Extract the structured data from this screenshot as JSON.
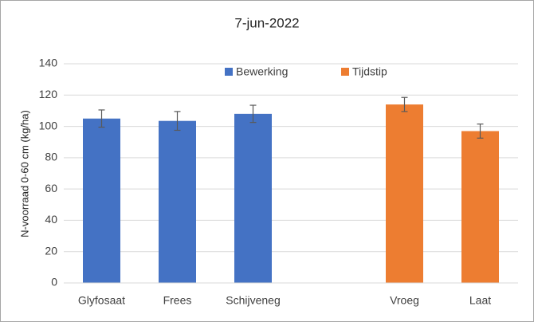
{
  "chart_data": {
    "type": "bar",
    "title": "7-jun-2022",
    "y_label": "N-voorraad 0-60 cm (kg/ha)",
    "categories": [
      "Glyfosaat",
      "Frees",
      "Schijveneg",
      null,
      "Vroeg",
      "Laat"
    ],
    "series": [
      {
        "name": "Bewerking",
        "color": "#4472c4",
        "values": [
          105,
          103.5,
          108,
          null,
          null,
          null
        ],
        "errors": [
          5.5,
          6,
          5.5,
          null,
          null,
          null
        ]
      },
      {
        "name": "Tijdstip",
        "color": "#ed7d31",
        "values": [
          null,
          null,
          null,
          null,
          114,
          97
        ],
        "errors": [
          null,
          null,
          null,
          null,
          4.5,
          4.5
        ]
      }
    ],
    "ylim": [
      0,
      140
    ],
    "yticks": [
      0,
      20,
      40,
      60,
      80,
      100,
      120,
      140
    ],
    "grid": true,
    "legend": "top"
  }
}
